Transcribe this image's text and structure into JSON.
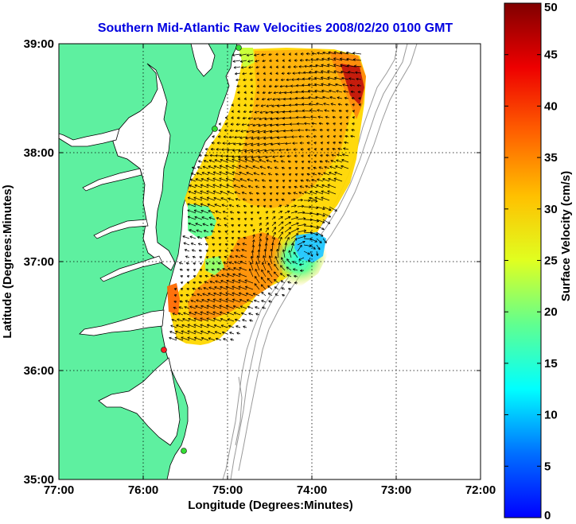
{
  "title": "Southern Mid-Atlantic Raw Velocities 2008/02/20 0100 GMT",
  "x_axis": {
    "label": "Longitude (Degrees:Minutes)",
    "ticks": [
      "77:00",
      "76:00",
      "75:00",
      "74:00",
      "73:00",
      "72:00"
    ]
  },
  "y_axis": {
    "label": "Latitude (Degrees:Minutes)",
    "ticks": [
      "39:00",
      "38:00",
      "37:00",
      "36:00",
      "35:00"
    ]
  },
  "colorbar": {
    "label": "Surface Velocity (cm/s)",
    "ticks": [
      "50",
      "45",
      "40",
      "35",
      "30",
      "25",
      "20",
      "15",
      "10",
      "5",
      "0"
    ],
    "range": [
      0,
      50
    ],
    "colormap": "jet"
  },
  "map": {
    "lon_range": [
      -77,
      -72
    ],
    "lat_range": [
      35,
      39
    ],
    "grid": true,
    "land_color": "#5ef0a0",
    "water_color": "#ffffff",
    "bathymetry_color": "#9a9a9a",
    "radar_site_colors": [
      "#33dd33",
      "#33dd33",
      "#ff2020",
      "#33dd33"
    ]
  }
}
